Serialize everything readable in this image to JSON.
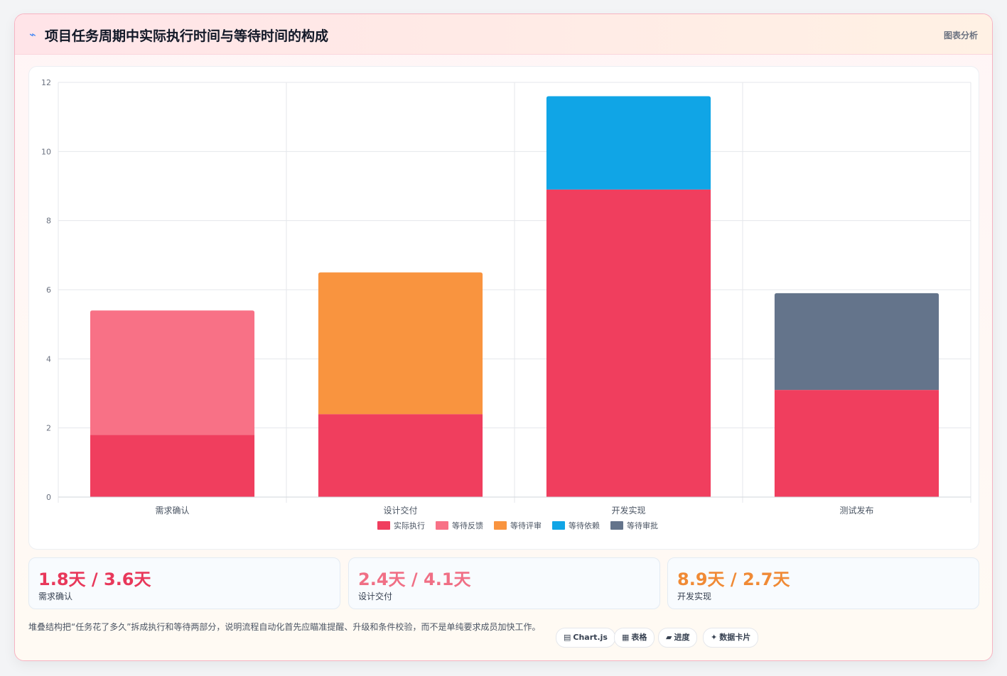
{
  "header": {
    "icon": "trend-icon",
    "title": "项目任务周期中实际执行时间与等待时间的构成",
    "tag": "图表分析"
  },
  "chart_data": {
    "type": "bar",
    "stacked": true,
    "categories": [
      "需求确认",
      "设计交付",
      "开发实现",
      "测试发布"
    ],
    "y_ticks": [
      "0",
      "2",
      "4",
      "6",
      "8",
      "10",
      "12"
    ],
    "ylim": [
      0,
      12
    ],
    "grid": true,
    "legend_position": "bottom",
    "legend": [
      {
        "name": "实际执行",
        "color": "#f03e5e"
      },
      {
        "name": "等待反馈",
        "color": "#f87186"
      },
      {
        "name": "等待评审",
        "color": "#f9943f"
      },
      {
        "name": "等待依赖",
        "color": "#10a5e6"
      },
      {
        "name": "等待审批",
        "color": "#64748b"
      }
    ],
    "series": [
      {
        "name": "实际执行",
        "color": "#f03e5e",
        "values": [
          1.8,
          2.4,
          8.9,
          3.1
        ]
      },
      {
        "name": "等待反馈",
        "color": "#f87186",
        "values": [
          3.6,
          0,
          0,
          0
        ]
      },
      {
        "name": "等待评审",
        "color": "#f9943f",
        "values": [
          0,
          4.1,
          0,
          0
        ]
      },
      {
        "name": "等待依赖",
        "color": "#10a5e6",
        "values": [
          0,
          0,
          2.7,
          0
        ]
      },
      {
        "name": "等待审批",
        "color": "#64748b",
        "values": [
          0,
          0,
          0,
          2.8
        ]
      }
    ]
  },
  "stats": [
    {
      "value": "1.8天 / 3.6天",
      "label": "需求确认",
      "color": "#e8385a"
    },
    {
      "value": "2.4天 / 4.1天",
      "label": "设计交付",
      "color": "#f06f85"
    },
    {
      "value": "8.9天 / 2.7天",
      "label": "开发实现",
      "color": "#f08a35"
    }
  ],
  "note": "堆叠结构把“任务花了多久”拆成执行和等待两部分，说明流程自动化首先应瞄准提醒、升级和条件校验，而不是单纯要求成员加快工作。",
  "chips": [
    {
      "icon": "▤",
      "label": "Chart.js"
    },
    {
      "icon": "▦",
      "label": "表格"
    },
    {
      "icon": "▰",
      "label": "进度"
    },
    {
      "icon": "✦",
      "label": "数据卡片"
    }
  ]
}
